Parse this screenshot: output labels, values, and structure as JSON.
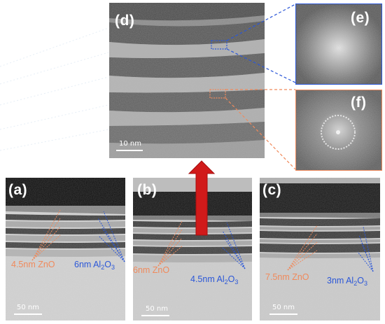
{
  "figure": {
    "panels": {
      "a": {
        "label": "(a)",
        "scale": "50 nm",
        "zno": "4.5nm ZnO",
        "al_num": "6nm Al",
        "al_sub1": "2",
        "al_o": "O",
        "al_sub2": "3"
      },
      "b": {
        "label": "(b)",
        "scale": "50 nm",
        "zno": "6nm ZnO",
        "al_num": "4.5nm Al",
        "al_sub1": "2",
        "al_o": "O",
        "al_sub2": "3"
      },
      "c": {
        "label": "(c)",
        "scale": "50 nm",
        "zno": "7.5nm ZnO",
        "al_num": "3nm Al",
        "al_sub1": "2",
        "al_o": "O",
        "al_sub2": "3"
      },
      "d": {
        "label": "(d)",
        "scale": "10 nm"
      },
      "e": {
        "label": "(e)"
      },
      "f": {
        "label": "(f)"
      }
    },
    "colors": {
      "zno": "#f08a5c",
      "al2o3": "#2b57d8",
      "arrow": "#d11a1a"
    }
  }
}
